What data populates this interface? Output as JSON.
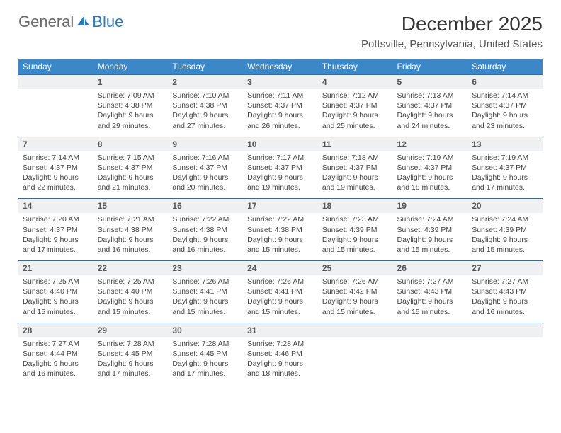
{
  "logo": {
    "text1": "General",
    "text2": "Blue"
  },
  "title": "December 2025",
  "location": "Pottsville, Pennsylvania, United States",
  "weekdays": [
    "Sunday",
    "Monday",
    "Tuesday",
    "Wednesday",
    "Thursday",
    "Friday",
    "Saturday"
  ],
  "colors": {
    "header_bg": "#3b87c8",
    "daynum_border": "#3b6a95",
    "daynum_bg": "#eef0f1"
  },
  "weeks": [
    {
      "nums": [
        "",
        "1",
        "2",
        "3",
        "4",
        "5",
        "6"
      ],
      "cells": [
        {},
        {
          "sr": "Sunrise: 7:09 AM",
          "ss": "Sunset: 4:38 PM",
          "dl1": "Daylight: 9 hours",
          "dl2": "and 29 minutes."
        },
        {
          "sr": "Sunrise: 7:10 AM",
          "ss": "Sunset: 4:38 PM",
          "dl1": "Daylight: 9 hours",
          "dl2": "and 27 minutes."
        },
        {
          "sr": "Sunrise: 7:11 AM",
          "ss": "Sunset: 4:37 PM",
          "dl1": "Daylight: 9 hours",
          "dl2": "and 26 minutes."
        },
        {
          "sr": "Sunrise: 7:12 AM",
          "ss": "Sunset: 4:37 PM",
          "dl1": "Daylight: 9 hours",
          "dl2": "and 25 minutes."
        },
        {
          "sr": "Sunrise: 7:13 AM",
          "ss": "Sunset: 4:37 PM",
          "dl1": "Daylight: 9 hours",
          "dl2": "and 24 minutes."
        },
        {
          "sr": "Sunrise: 7:14 AM",
          "ss": "Sunset: 4:37 PM",
          "dl1": "Daylight: 9 hours",
          "dl2": "and 23 minutes."
        }
      ]
    },
    {
      "nums": [
        "7",
        "8",
        "9",
        "10",
        "11",
        "12",
        "13"
      ],
      "cells": [
        {
          "sr": "Sunrise: 7:14 AM",
          "ss": "Sunset: 4:37 PM",
          "dl1": "Daylight: 9 hours",
          "dl2": "and 22 minutes."
        },
        {
          "sr": "Sunrise: 7:15 AM",
          "ss": "Sunset: 4:37 PM",
          "dl1": "Daylight: 9 hours",
          "dl2": "and 21 minutes."
        },
        {
          "sr": "Sunrise: 7:16 AM",
          "ss": "Sunset: 4:37 PM",
          "dl1": "Daylight: 9 hours",
          "dl2": "and 20 minutes."
        },
        {
          "sr": "Sunrise: 7:17 AM",
          "ss": "Sunset: 4:37 PM",
          "dl1": "Daylight: 9 hours",
          "dl2": "and 19 minutes."
        },
        {
          "sr": "Sunrise: 7:18 AM",
          "ss": "Sunset: 4:37 PM",
          "dl1": "Daylight: 9 hours",
          "dl2": "and 19 minutes."
        },
        {
          "sr": "Sunrise: 7:19 AM",
          "ss": "Sunset: 4:37 PM",
          "dl1": "Daylight: 9 hours",
          "dl2": "and 18 minutes."
        },
        {
          "sr": "Sunrise: 7:19 AM",
          "ss": "Sunset: 4:37 PM",
          "dl1": "Daylight: 9 hours",
          "dl2": "and 17 minutes."
        }
      ]
    },
    {
      "nums": [
        "14",
        "15",
        "16",
        "17",
        "18",
        "19",
        "20"
      ],
      "cells": [
        {
          "sr": "Sunrise: 7:20 AM",
          "ss": "Sunset: 4:37 PM",
          "dl1": "Daylight: 9 hours",
          "dl2": "and 17 minutes."
        },
        {
          "sr": "Sunrise: 7:21 AM",
          "ss": "Sunset: 4:38 PM",
          "dl1": "Daylight: 9 hours",
          "dl2": "and 16 minutes."
        },
        {
          "sr": "Sunrise: 7:22 AM",
          "ss": "Sunset: 4:38 PM",
          "dl1": "Daylight: 9 hours",
          "dl2": "and 16 minutes."
        },
        {
          "sr": "Sunrise: 7:22 AM",
          "ss": "Sunset: 4:38 PM",
          "dl1": "Daylight: 9 hours",
          "dl2": "and 15 minutes."
        },
        {
          "sr": "Sunrise: 7:23 AM",
          "ss": "Sunset: 4:39 PM",
          "dl1": "Daylight: 9 hours",
          "dl2": "and 15 minutes."
        },
        {
          "sr": "Sunrise: 7:24 AM",
          "ss": "Sunset: 4:39 PM",
          "dl1": "Daylight: 9 hours",
          "dl2": "and 15 minutes."
        },
        {
          "sr": "Sunrise: 7:24 AM",
          "ss": "Sunset: 4:39 PM",
          "dl1": "Daylight: 9 hours",
          "dl2": "and 15 minutes."
        }
      ]
    },
    {
      "nums": [
        "21",
        "22",
        "23",
        "24",
        "25",
        "26",
        "27"
      ],
      "cells": [
        {
          "sr": "Sunrise: 7:25 AM",
          "ss": "Sunset: 4:40 PM",
          "dl1": "Daylight: 9 hours",
          "dl2": "and 15 minutes."
        },
        {
          "sr": "Sunrise: 7:25 AM",
          "ss": "Sunset: 4:40 PM",
          "dl1": "Daylight: 9 hours",
          "dl2": "and 15 minutes."
        },
        {
          "sr": "Sunrise: 7:26 AM",
          "ss": "Sunset: 4:41 PM",
          "dl1": "Daylight: 9 hours",
          "dl2": "and 15 minutes."
        },
        {
          "sr": "Sunrise: 7:26 AM",
          "ss": "Sunset: 4:41 PM",
          "dl1": "Daylight: 9 hours",
          "dl2": "and 15 minutes."
        },
        {
          "sr": "Sunrise: 7:26 AM",
          "ss": "Sunset: 4:42 PM",
          "dl1": "Daylight: 9 hours",
          "dl2": "and 15 minutes."
        },
        {
          "sr": "Sunrise: 7:27 AM",
          "ss": "Sunset: 4:43 PM",
          "dl1": "Daylight: 9 hours",
          "dl2": "and 15 minutes."
        },
        {
          "sr": "Sunrise: 7:27 AM",
          "ss": "Sunset: 4:43 PM",
          "dl1": "Daylight: 9 hours",
          "dl2": "and 16 minutes."
        }
      ]
    },
    {
      "nums": [
        "28",
        "29",
        "30",
        "31",
        "",
        "",
        ""
      ],
      "cells": [
        {
          "sr": "Sunrise: 7:27 AM",
          "ss": "Sunset: 4:44 PM",
          "dl1": "Daylight: 9 hours",
          "dl2": "and 16 minutes."
        },
        {
          "sr": "Sunrise: 7:28 AM",
          "ss": "Sunset: 4:45 PM",
          "dl1": "Daylight: 9 hours",
          "dl2": "and 17 minutes."
        },
        {
          "sr": "Sunrise: 7:28 AM",
          "ss": "Sunset: 4:45 PM",
          "dl1": "Daylight: 9 hours",
          "dl2": "and 17 minutes."
        },
        {
          "sr": "Sunrise: 7:28 AM",
          "ss": "Sunset: 4:46 PM",
          "dl1": "Daylight: 9 hours",
          "dl2": "and 18 minutes."
        },
        {},
        {},
        {}
      ]
    }
  ]
}
